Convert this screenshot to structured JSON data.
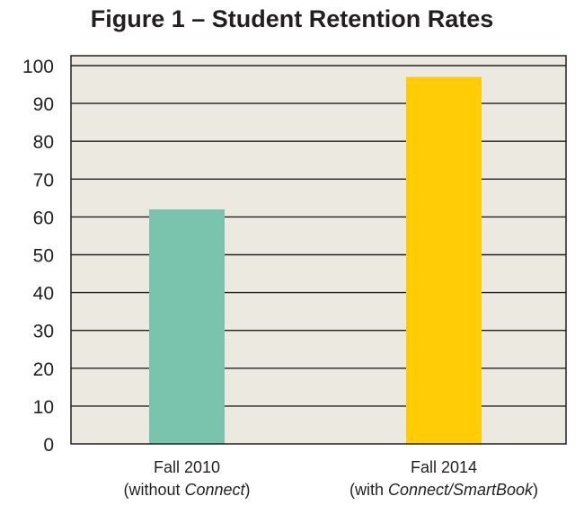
{
  "chart_data": {
    "type": "bar",
    "title": "Figure 1 – Student Retention Rates",
    "categories": [
      {
        "line1": "Fall 2010",
        "line2_prefix": "(without ",
        "line2_italic": "Connect",
        "line2_suffix": ")"
      },
      {
        "line1": "Fall 2014",
        "line2_prefix": "(with ",
        "line2_italic": "Connect/SmartBook",
        "line2_suffix": ")"
      }
    ],
    "values": [
      62,
      97
    ],
    "colors": [
      "#7ac4ae",
      "#ffcc05"
    ],
    "plot_background": "#eceae0",
    "yticks": [
      "0",
      "10",
      "20",
      "30",
      "40",
      "50",
      "60",
      "70",
      "80",
      "90",
      "100"
    ],
    "ylim": [
      0,
      100
    ],
    "xlabel": "",
    "ylabel": "",
    "grid": true
  }
}
